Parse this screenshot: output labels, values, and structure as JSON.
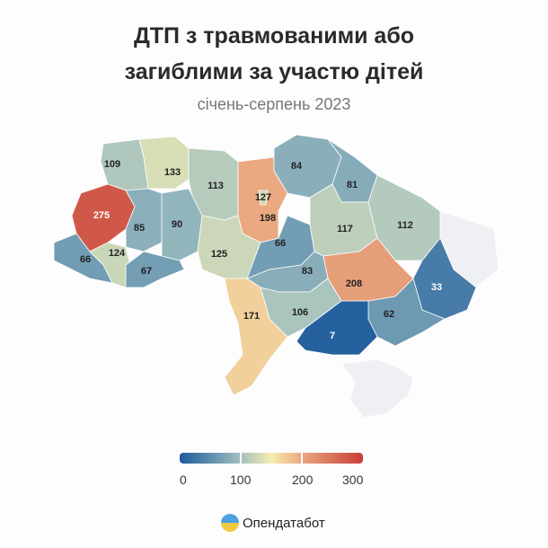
{
  "title_line1": "ДТП з травмованими або",
  "title_line2": "загиблими за участю дітей",
  "subtitle": "січень-серпень 2023",
  "regions": [
    {
      "name": "volyn",
      "value": 109
    },
    {
      "name": "rivne",
      "value": 133
    },
    {
      "name": "zhytomyr",
      "value": 113
    },
    {
      "name": "kyiv-city",
      "value": 127
    },
    {
      "name": "kyiv-oblast",
      "value": 198
    },
    {
      "name": "chernihiv",
      "value": 84
    },
    {
      "name": "sumy",
      "value": 81
    },
    {
      "name": "lviv",
      "value": 275
    },
    {
      "name": "ternopil",
      "value": 85
    },
    {
      "name": "khmelnytskyi",
      "value": 90
    },
    {
      "name": "zakarpattia",
      "value": 66
    },
    {
      "name": "ivano-frankivsk",
      "value": 124
    },
    {
      "name": "chernivtsi",
      "value": 67
    },
    {
      "name": "vinnytsia",
      "value": 125
    },
    {
      "name": "cherkasy",
      "value": 66
    },
    {
      "name": "poltava",
      "value": 117
    },
    {
      "name": "kharkiv",
      "value": 112
    },
    {
      "name": "kirovohrad",
      "value": 83
    },
    {
      "name": "dnipropetrovsk",
      "value": 208
    },
    {
      "name": "donetsk",
      "value": 33
    },
    {
      "name": "zaporizhzhia",
      "value": 62
    },
    {
      "name": "mykolaiv",
      "value": 106
    },
    {
      "name": "kherson",
      "value": 7
    },
    {
      "name": "odesa",
      "value": 171
    },
    {
      "name": "luhansk",
      "value": null
    },
    {
      "name": "crimea",
      "value": null
    }
  ],
  "legend": {
    "ticks": [
      "0",
      "100",
      "200",
      "300"
    ],
    "min": 0,
    "max": 300
  },
  "brand": "Опендатабот"
}
